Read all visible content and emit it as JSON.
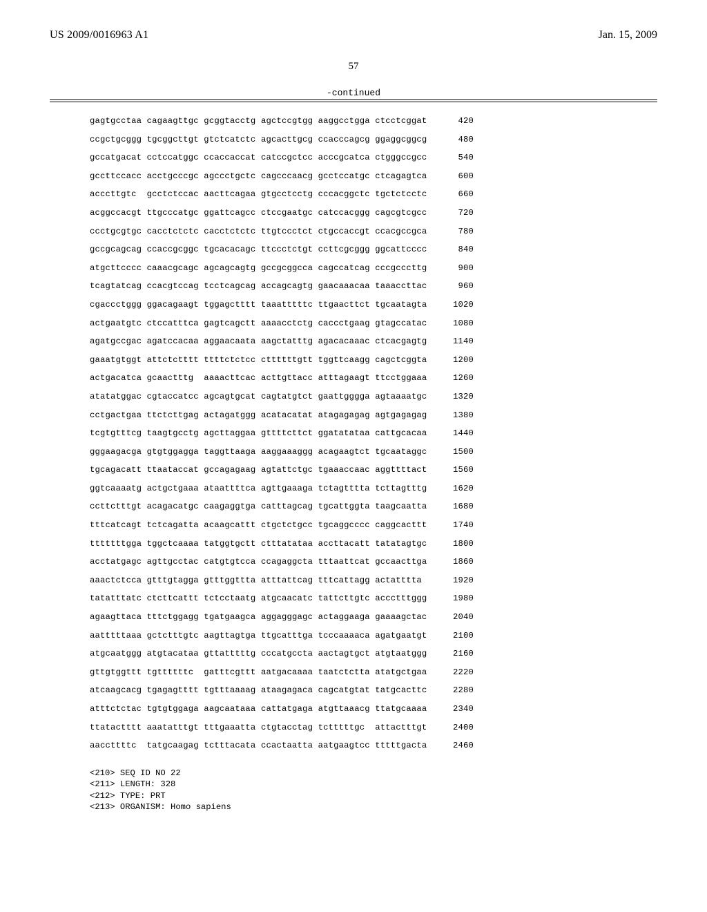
{
  "header": {
    "publication_number": "US 2009/0016963 A1",
    "publication_date": "Jan. 15, 2009"
  },
  "page_number": "57",
  "continued_label": "-continued",
  "sequence": {
    "group_gap": " ",
    "num_col_width": 52,
    "rows": [
      {
        "groups": [
          "gagtgcctaa",
          "cagaagttgc",
          "gcggtacctg",
          "agctccgtgg",
          "aaggcctgga",
          "ctcctcggat"
        ],
        "pos": 420
      },
      {
        "groups": [
          "ccgctgcggg",
          "tgcggcttgt",
          "gtctcatctc",
          "agcacttgcg",
          "ccacccagcg",
          "ggaggcggcg"
        ],
        "pos": 480
      },
      {
        "groups": [
          "gccatgacat",
          "cctccatggc",
          "ccaccaccat",
          "catccgctcc",
          "acccgcatca",
          "ctgggccgcc"
        ],
        "pos": 540
      },
      {
        "groups": [
          "gccttccacc",
          "acctgcccgc",
          "agccctgctc",
          "cagcccaacg",
          "gcctccatgc",
          "ctcagagtca"
        ],
        "pos": 600
      },
      {
        "groups": [
          "acccttgtc",
          "gcctctccac",
          "aacttcagaa",
          "gtgcctcctg",
          "cccacggctc",
          "tgctctcctc"
        ],
        "pos": 660
      },
      {
        "groups": [
          "acggccacgt",
          "ttgcccatgc",
          "ggattcagcc",
          "ctccgaatgc",
          "catccacggg",
          "cagcgtcgcc"
        ],
        "pos": 720
      },
      {
        "groups": [
          "ccctgcgtgc",
          "cacctctctc",
          "cacctctctc",
          "ttgtccctct",
          "ctgccaccgt",
          "ccacgccgca"
        ],
        "pos": 780
      },
      {
        "groups": [
          "gccgcagcag",
          "ccaccgcggc",
          "tgcacacagc",
          "ttccctctgt",
          "ccttcgcggg",
          "ggcattcccc"
        ],
        "pos": 840
      },
      {
        "groups": [
          "atgcttcccc",
          "caaacgcagc",
          "agcagcagtg",
          "gccgcggcca",
          "cagccatcag",
          "cccgcccttg"
        ],
        "pos": 900
      },
      {
        "groups": [
          "tcagtatcag",
          "ccacgtccag",
          "tcctcagcag",
          "accagcagtg",
          "gaacaaacaa",
          "taaaccttac"
        ],
        "pos": 960
      },
      {
        "groups": [
          "cgaccctggg",
          "ggacagaagt",
          "tggagctttt",
          "taaatttttc",
          "ttgaacttct",
          "tgcaatagta"
        ],
        "pos": 1020
      },
      {
        "groups": [
          "actgaatgtc",
          "ctccatttca",
          "gagtcagctt",
          "aaaacctctg",
          "caccctgaag",
          "gtagccatac"
        ],
        "pos": 1080
      },
      {
        "groups": [
          "agatgccgac",
          "agatccacaa",
          "aggaacaata",
          "aagctatttg",
          "agacacaaac",
          "ctcacgagtg"
        ],
        "pos": 1140
      },
      {
        "groups": [
          "gaaatgtggt",
          "attctctttt",
          "ttttctctcc",
          "cttttttgtt",
          "tggttcaagg",
          "cagctcggta"
        ],
        "pos": 1200
      },
      {
        "groups": [
          "actgacatca",
          "gcaactttg",
          "aaaacttcac",
          "acttgttacc",
          "atttagaagt",
          "ttcctggaaa"
        ],
        "pos": 1260
      },
      {
        "groups": [
          "atatatggac",
          "cgtaccatcc",
          "agcagtgcat",
          "cagtatgtct",
          "gaattgggga",
          "agtaaaatgc"
        ],
        "pos": 1320
      },
      {
        "groups": [
          "cctgactgaa",
          "ttctcttgag",
          "actagatggg",
          "acatacatat",
          "atagagagag",
          "agtgagagag"
        ],
        "pos": 1380
      },
      {
        "groups": [
          "tcgtgtttcg",
          "taagtgcctg",
          "agcttaggaa",
          "gttttcttct",
          "ggatatataa",
          "cattgcacaa"
        ],
        "pos": 1440
      },
      {
        "groups": [
          "gggaagacga",
          "gtgtggagga",
          "taggttaaga",
          "aaggaaaggg",
          "acagaagtct",
          "tgcaataggc"
        ],
        "pos": 1500
      },
      {
        "groups": [
          "tgcagacatt",
          "ttaataccat",
          "gccagagaag",
          "agtattctgc",
          "tgaaaccaac",
          "aggttttact"
        ],
        "pos": 1560
      },
      {
        "groups": [
          "ggtcaaaatg",
          "actgctgaaa",
          "ataattttca",
          "agttgaaaga",
          "tctagtttta",
          "tcttagtttg"
        ],
        "pos": 1620
      },
      {
        "groups": [
          "ccttctttgt",
          "acagacatgc",
          "caagaggtga",
          "catttagcag",
          "tgcattggta",
          "taagcaatta"
        ],
        "pos": 1680
      },
      {
        "groups": [
          "tttcatcagt",
          "tctcagatta",
          "acaagcattt",
          "ctgctctgcc",
          "tgcaggcccc",
          "caggcacttt"
        ],
        "pos": 1740
      },
      {
        "groups": [
          "tttttttgga",
          "tggctcaaaa",
          "tatggtgctt",
          "ctttatataa",
          "accttacatt",
          "tatatagtgc"
        ],
        "pos": 1800
      },
      {
        "groups": [
          "acctatgagc",
          "agttgcctac",
          "catgtgtcca",
          "ccagaggcta",
          "tttaattcat",
          "gccaacttga"
        ],
        "pos": 1860
      },
      {
        "groups": [
          "aaactctcca",
          "gtttgtagga",
          "gtttggttta",
          "atttattcag",
          "tttcattagg",
          "actatttta"
        ],
        "pos": 1920
      },
      {
        "groups": [
          "tatatttatc",
          "ctcttcattt",
          "tctcctaatg",
          "atgcaacatc",
          "tattcttgtc",
          "accctttggg"
        ],
        "pos": 1980
      },
      {
        "groups": [
          "agaagttaca",
          "tttctggagg",
          "tgatgaagca",
          "aggagggagc",
          "actaggaaga",
          "gaaaagctac"
        ],
        "pos": 2040
      },
      {
        "groups": [
          "aatttttaaa",
          "gctctttgtc",
          "aagttagtga",
          "ttgcatttga",
          "tcccaaaaca",
          "agatgaatgt"
        ],
        "pos": 2100
      },
      {
        "groups": [
          "atgcaatggg",
          "atgtacataa",
          "gttatttttg",
          "cccatgccta",
          "aactagtgct",
          "atgtaatggg"
        ],
        "pos": 2160
      },
      {
        "groups": [
          "gttgtggttt",
          "tgttttttc",
          "gatttcgttt",
          "aatgacaaaa",
          "taatctctta",
          "atatgctgaa"
        ],
        "pos": 2220
      },
      {
        "groups": [
          "atcaagcacg",
          "tgagagtttt",
          "tgtttaaaag",
          "ataagagaca",
          "cagcatgtat",
          "tatgcacttc"
        ],
        "pos": 2280
      },
      {
        "groups": [
          "atttctctac",
          "tgtgtggaga",
          "aagcaataaa",
          "cattatgaga",
          "atgttaaacg",
          "ttatgcaaaa"
        ],
        "pos": 2340
      },
      {
        "groups": [
          "ttatactttt",
          "aaatatttgt",
          "tttgaaatta",
          "ctgtacctag",
          "tctttttgc",
          "attactttgt"
        ],
        "pos": 2400
      },
      {
        "groups": [
          "aaccttttc",
          "tatgcaagag",
          "tctttacata",
          "ccactaatta",
          "aatgaagtcc",
          "tttttgacta"
        ],
        "pos": 2460
      }
    ]
  },
  "footer": {
    "lines": [
      "<210> SEQ ID NO 22",
      "<211> LENGTH: 328",
      "<212> TYPE: PRT",
      "<213> ORGANISM: Homo sapiens"
    ]
  }
}
